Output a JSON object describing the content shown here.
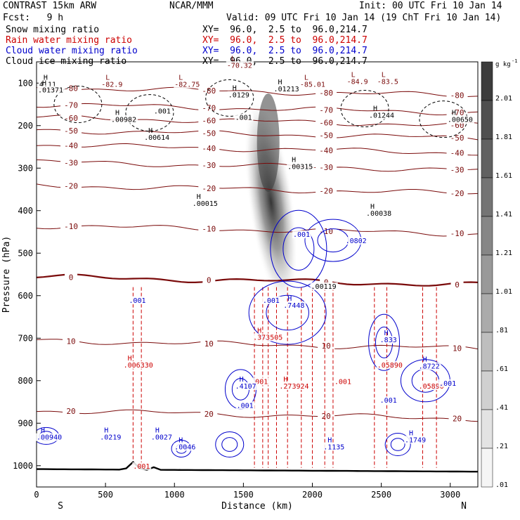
{
  "header": {
    "model": "CONTRAST 15km ARW",
    "org": "NCAR/MMM",
    "init": "Init: 00 UTC Fri 10 Jan 14",
    "fcst": "Fcst:   9 h",
    "valid": "Valid: 09 UTC Fri 10 Jan 14 (19 ChT Fri 10 Jan 14)"
  },
  "legend": [
    {
      "label": "Snow mixing ratio",
      "xy": "XY=  96.0,  2.5 to  96.0,214.7",
      "color": "#000000"
    },
    {
      "label": "Rain water mixing ratio",
      "xy": "XY=  96.0,  2.5 to  96.0,214.7",
      "color": "#cc0000"
    },
    {
      "label": "Cloud water mixing ratio",
      "xy": "XY=  96.0,  2.5 to  96.0,214.7",
      "color": "#0000cc"
    },
    {
      "label": "Cloud ice mixing ratio",
      "xy": "XY=  96.0,  2.5 to  96.0,214.7",
      "color": "#000000"
    }
  ],
  "chart_data": {
    "type": "heatmap",
    "xlabel": "Distance (km)",
    "ylabel": "Pressure (hPa)",
    "xlim": [
      0,
      3200
    ],
    "ylim": [
      1050,
      50
    ],
    "x_ticks": [
      0,
      500,
      1000,
      1500,
      2000,
      2500,
      3000
    ],
    "y_ticks": [
      100,
      200,
      300,
      400,
      500,
      600,
      700,
      800,
      900,
      1000
    ],
    "end_labels": {
      "left": "S",
      "right": "N"
    },
    "colorbar": {
      "unit": "g kg",
      "unit_exp": "-1",
      "ticks": [
        "2.01",
        "1.81",
        "1.61",
        "1.41",
        "1.21",
        "1.01",
        ".81",
        ".61",
        ".41",
        ".21",
        ".01"
      ]
    },
    "temperature_contours": [
      {
        "label": "-80",
        "p": 120
      },
      {
        "label": "-70",
        "p": 160
      },
      {
        "label": "-60",
        "p": 190
      },
      {
        "label": "-50",
        "p": 220
      },
      {
        "label": "-40",
        "p": 255
      },
      {
        "label": "-30",
        "p": 295
      },
      {
        "label": "-20",
        "p": 350
      },
      {
        "label": "-10",
        "p": 445
      },
      {
        "label": "0",
        "p": 565
      },
      {
        "label": "10",
        "p": 715
      },
      {
        "label": "20",
        "p": 880
      }
    ],
    "annotations": [
      {
        "text": "-70.32",
        "x": 1380,
        "p": 62,
        "color": "#7a0a0a",
        "kind": "L"
      },
      {
        "text": "-82.9",
        "x": 470,
        "p": 107,
        "color": "#7a0a0a",
        "kind": "L"
      },
      {
        "text": "-82.75",
        "x": 1000,
        "p": 107,
        "color": "#7a0a0a",
        "kind": "L"
      },
      {
        "text": "-85.01",
        "x": 1910,
        "p": 107,
        "color": "#7a0a0a",
        "kind": "L"
      },
      {
        "text": "-84.9",
        "x": 2250,
        "p": 100,
        "color": "#7a0a0a",
        "kind": "L"
      },
      {
        "text": "-83.5",
        "x": 2470,
        "p": 100,
        "color": "#7a0a0a",
        "kind": "L"
      },
      {
        "text": "4.11",
        "x": 20,
        "p": 107,
        "color": "#000000",
        "kind": "H"
      },
      {
        "text": ".01371",
        "x": 10,
        "p": 120,
        "color": "#000000",
        "kind": "H"
      },
      {
        "text": ".01213",
        "x": 1720,
        "p": 118,
        "color": "#000000",
        "kind": "H"
      },
      {
        "text": ".0129",
        "x": 1390,
        "p": 132,
        "color": "#000000",
        "kind": "H"
      },
      {
        "text": ".001",
        "x": 850,
        "p": 170,
        "color": "#000000",
        "kind": ""
      },
      {
        "text": ".001",
        "x": 1440,
        "p": 185,
        "color": "#000000",
        "kind": ""
      },
      {
        "text": ".00982",
        "x": 540,
        "p": 190,
        "color": "#000000",
        "kind": "H"
      },
      {
        "text": ".01244",
        "x": 2410,
        "p": 180,
        "color": "#000000",
        "kind": "H"
      },
      {
        "text": ".00650",
        "x": 2980,
        "p": 190,
        "color": "#000000",
        "kind": "H"
      },
      {
        "text": ".00614",
        "x": 780,
        "p": 232,
        "color": "#000000",
        "kind": "H"
      },
      {
        "text": ".00315",
        "x": 1820,
        "p": 300,
        "color": "#000000",
        "kind": "H"
      },
      {
        "text": ".00015",
        "x": 1130,
        "p": 387,
        "color": "#000000",
        "kind": "H"
      },
      {
        "text": ".00038",
        "x": 2390,
        "p": 410,
        "color": "#000000",
        "kind": "H"
      },
      {
        "text": ".001",
        "x": 1860,
        "p": 460,
        "color": "#0000cc",
        "kind": ""
      },
      {
        "text": ".0802",
        "x": 2240,
        "p": 475,
        "color": "#0000cc",
        "kind": ""
      },
      {
        "text": ".00119",
        "x": 1990,
        "p": 582,
        "color": "#000000",
        "kind": ""
      },
      {
        "text": ".001",
        "x": 670,
        "p": 615,
        "color": "#0000cc",
        "kind": ""
      },
      {
        "text": ".001",
        "x": 1640,
        "p": 615,
        "color": "#0000cc",
        "kind": ""
      },
      {
        "text": ".7448",
        "x": 1790,
        "p": 627,
        "color": "#0000cc",
        "kind": "H"
      },
      {
        "text": ".373505",
        "x": 1570,
        "p": 702,
        "color": "#cc0000",
        "kind": "H"
      },
      {
        "text": ".006330",
        "x": 630,
        "p": 767,
        "color": "#cc0000",
        "kind": "H"
      },
      {
        "text": ".001",
        "x": 1555,
        "p": 806,
        "color": "#cc0000",
        "kind": ""
      },
      {
        "text": ".4107",
        "x": 1440,
        "p": 817,
        "color": "#0000cc",
        "kind": "H"
      },
      {
        "text": ".273924",
        "x": 1760,
        "p": 817,
        "color": "#cc0000",
        "kind": "H"
      },
      {
        "text": ".001",
        "x": 2160,
        "p": 806,
        "color": "#cc0000",
        "kind": ""
      },
      {
        "text": ".833",
        "x": 2490,
        "p": 708,
        "color": "#0000cc",
        "kind": "H"
      },
      {
        "text": ".05890",
        "x": 2470,
        "p": 767,
        "color": "#cc0000",
        "kind": ""
      },
      {
        "text": ".8722",
        "x": 2770,
        "p": 770,
        "color": "#0000cc",
        "kind": "H"
      },
      {
        "text": ".05890",
        "x": 2770,
        "p": 817,
        "color": "#cc0000",
        "kind": ""
      },
      {
        "text": ".001",
        "x": 2920,
        "p": 810,
        "color": "#0000cc",
        "kind": ""
      },
      {
        "text": ".001",
        "x": 1450,
        "p": 862,
        "color": "#0000cc",
        "kind": ""
      },
      {
        "text": ".001",
        "x": 2490,
        "p": 850,
        "color": "#0000cc",
        "kind": ""
      },
      {
        "text": ".00940",
        "x": 0,
        "p": 937,
        "color": "#0000cc",
        "kind": "H"
      },
      {
        "text": ".0219",
        "x": 460,
        "p": 937,
        "color": "#0000cc",
        "kind": "H"
      },
      {
        "text": ".0027",
        "x": 830,
        "p": 937,
        "color": "#0000cc",
        "kind": "H"
      },
      {
        "text": ".0046",
        "x": 1000,
        "p": 960,
        "color": "#0000cc",
        "kind": "H"
      },
      {
        "text": ".1135",
        "x": 2080,
        "p": 960,
        "color": "#0000cc",
        "kind": "H"
      },
      {
        "text": ".1749",
        "x": 2670,
        "p": 943,
        "color": "#0000cc",
        "kind": "H"
      },
      {
        "text": ".001",
        "x": 700,
        "p": 1005,
        "color": "#cc0000",
        "kind": ""
      }
    ]
  }
}
